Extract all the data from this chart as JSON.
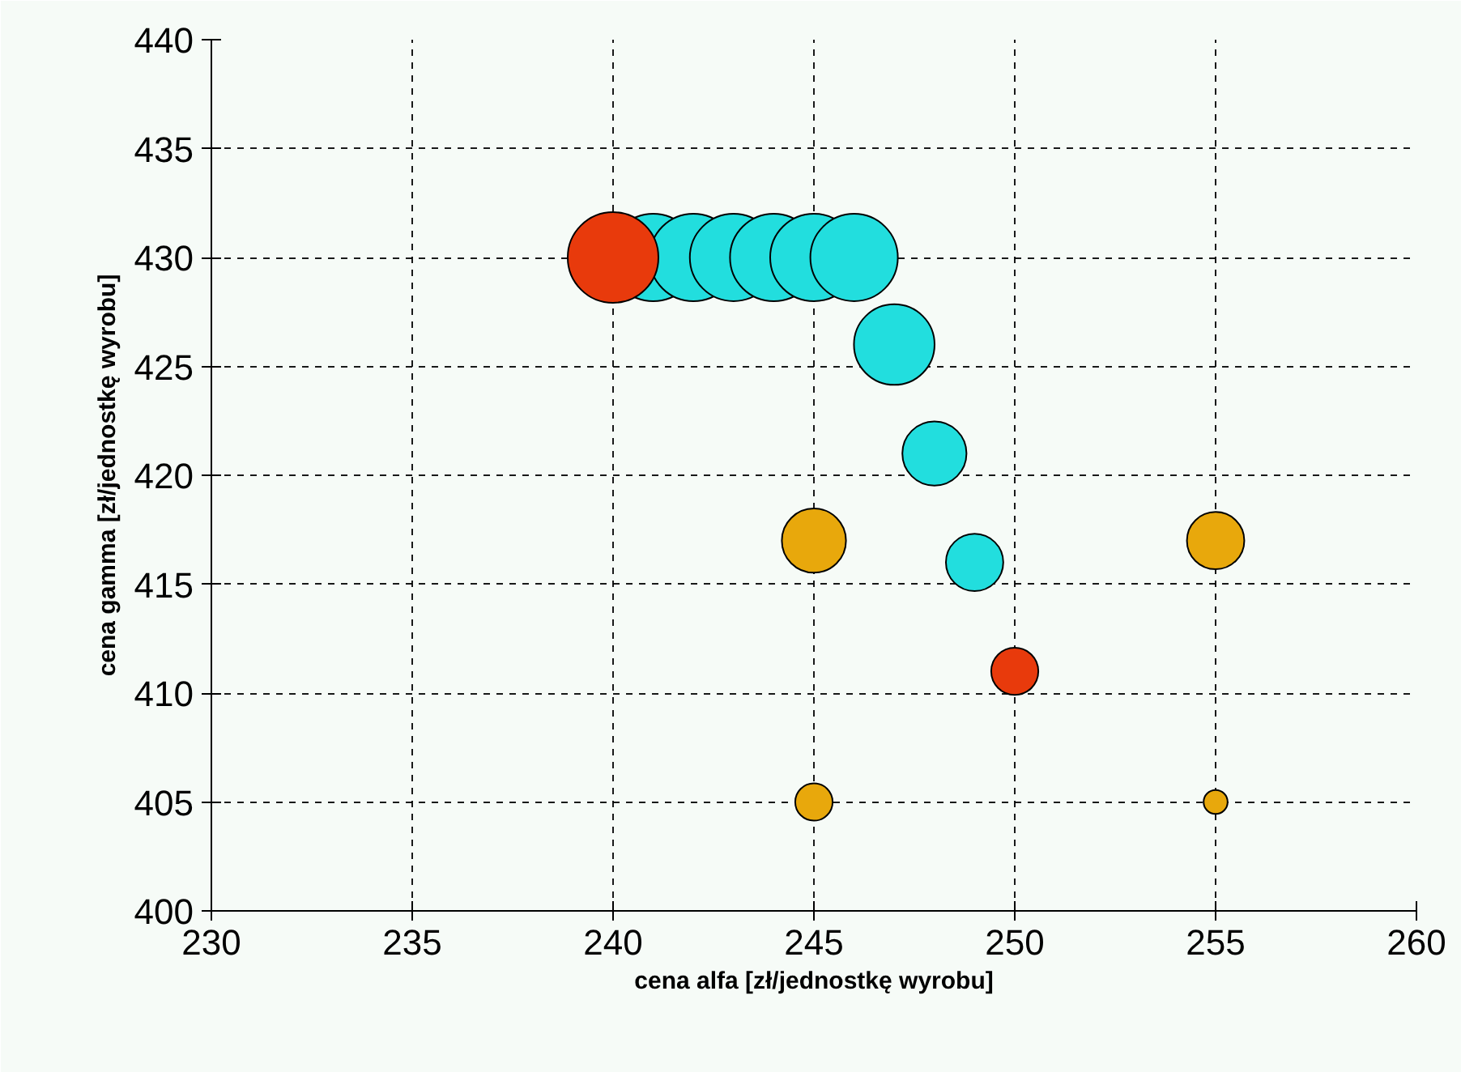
{
  "chart_data": {
    "type": "bubble",
    "xlabel": "cena alfa [zł/jednostkę wyrobu]",
    "ylabel": "cena gamma [zł/jednostkę wyrobu]",
    "xlim": [
      230,
      260
    ],
    "xticks": [
      230,
      235,
      240,
      245,
      250,
      255,
      260
    ],
    "ylim": [
      400,
      440
    ],
    "yticks": [
      400,
      405,
      410,
      415,
      420,
      425,
      430,
      435,
      440
    ],
    "grid": true,
    "series": [
      {
        "color": "#22dede",
        "x": [
          241,
          242,
          243,
          244,
          245,
          246,
          247,
          248,
          249
        ],
        "values": [
          430,
          430,
          430,
          430,
          430,
          430,
          426,
          421,
          416
        ],
        "sizes": [
          0.93,
          0.93,
          0.93,
          0.93,
          0.93,
          0.93,
          0.79,
          0.5,
          0.4
        ]
      },
      {
        "color": "#e8a80c",
        "x": [
          245,
          255,
          245,
          255
        ],
        "values": [
          417,
          417,
          405,
          405
        ],
        "sizes": [
          0.5,
          0.4,
          0.17,
          0.07
        ]
      },
      {
        "color": "#e83a0c",
        "x": [
          240,
          250
        ],
        "values": [
          430,
          411
        ],
        "sizes": [
          1,
          0.27
        ]
      }
    ]
  }
}
